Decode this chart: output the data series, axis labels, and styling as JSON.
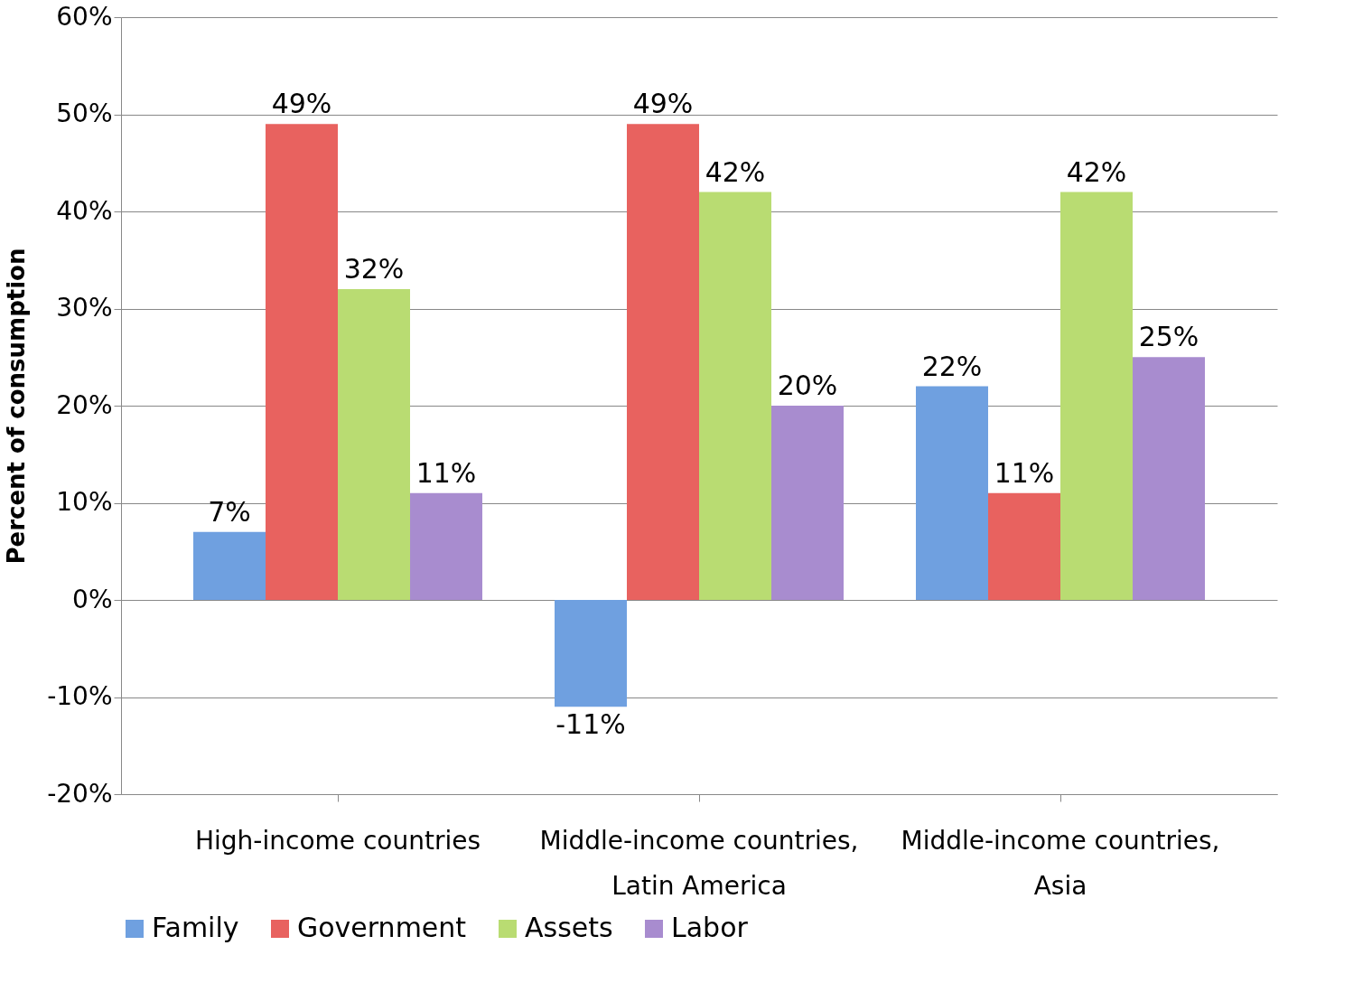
{
  "chart_data": {
    "type": "bar",
    "ylabel": "Percent of consumption",
    "categories": [
      "High-income countries",
      "Middle-income countries, Latin America",
      "Middle-income countries, Asia"
    ],
    "series": [
      {
        "name": "Family",
        "color": "#6fa0e0",
        "values": [
          7,
          -11,
          22
        ],
        "value_labels": [
          "7%",
          "-11%",
          "22%"
        ]
      },
      {
        "name": "Government",
        "color": "#e8625f",
        "values": [
          49,
          49,
          11
        ],
        "value_labels": [
          "49%",
          "49%",
          "11%"
        ]
      },
      {
        "name": "Assets",
        "color": "#b9dc72",
        "values": [
          32,
          42,
          42
        ],
        "value_labels": [
          "32%",
          "42%",
          "42%"
        ]
      },
      {
        "name": "Labor",
        "color": "#a88ccf",
        "values": [
          11,
          20,
          25
        ],
        "value_labels": [
          "11%",
          "20%",
          "25%"
        ]
      }
    ],
    "ylim": [
      -20,
      60
    ],
    "yticks": [
      {
        "value": -20,
        "label": "-20%"
      },
      {
        "value": -10,
        "label": "-10%"
      },
      {
        "value": 0,
        "label": "0%"
      },
      {
        "value": 10,
        "label": "10%"
      },
      {
        "value": 20,
        "label": "20%"
      },
      {
        "value": 30,
        "label": "30%"
      },
      {
        "value": 40,
        "label": "40%"
      },
      {
        "value": 50,
        "label": "50%"
      },
      {
        "value": 60,
        "label": "60%"
      }
    ],
    "grid": "y",
    "legend": "bottom"
  }
}
